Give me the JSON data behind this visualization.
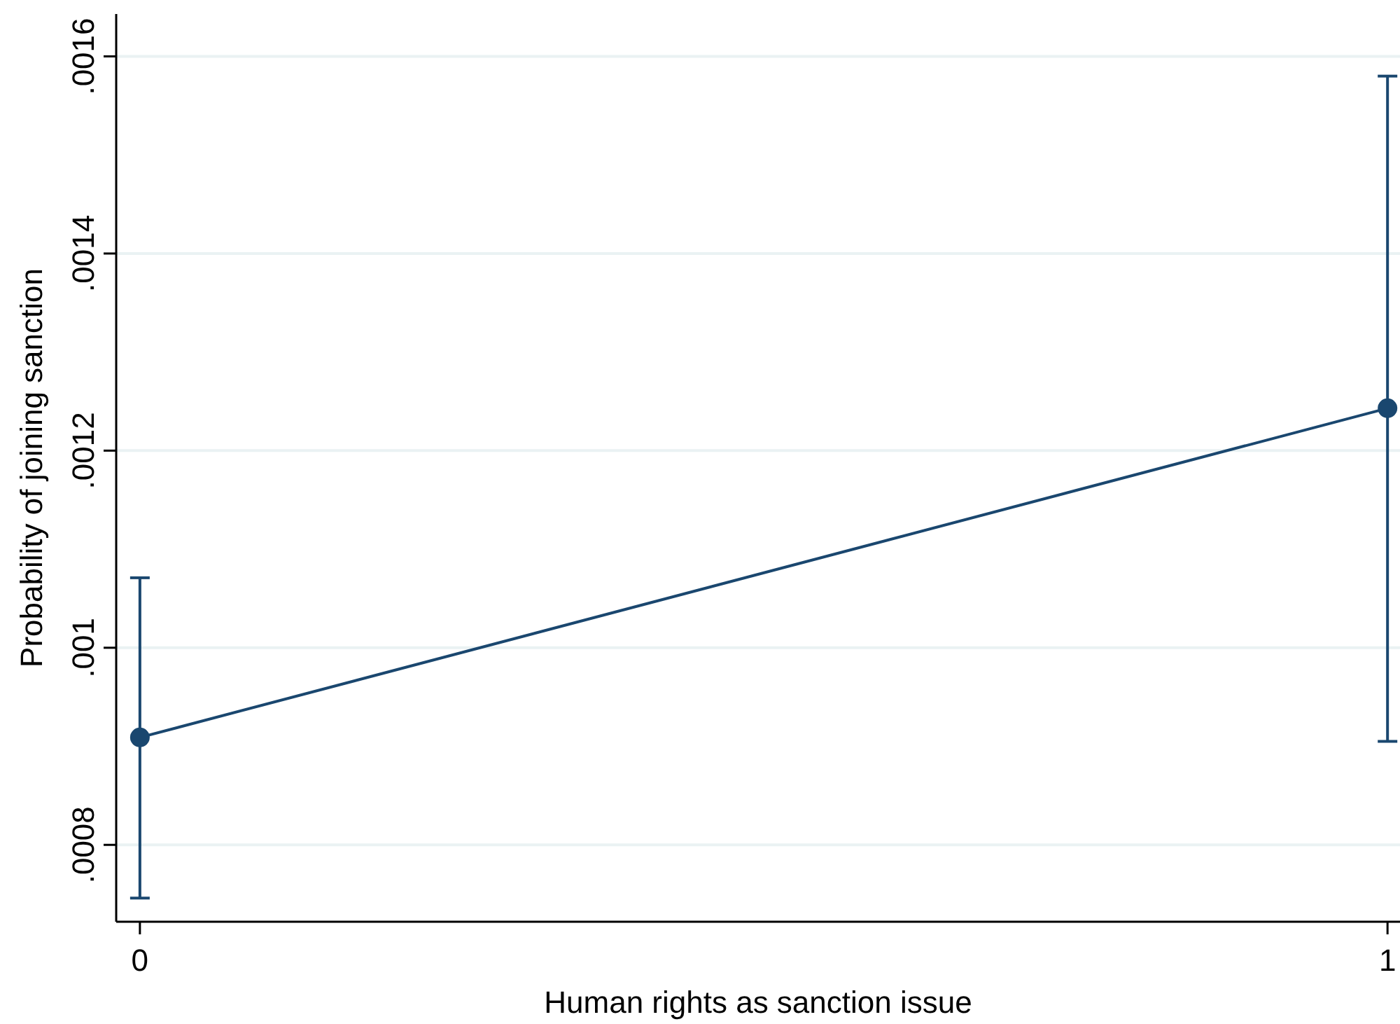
{
  "chart_data": {
    "type": "line",
    "xlabel": "Human rights as sanction issue",
    "ylabel": "Probability of joining sanction",
    "x": [
      0,
      1
    ],
    "series": [
      {
        "color": "#1a476f",
        "values": [
          0.000909,
          0.001243
        ],
        "errors": [
          [
            0.000746,
            0.001071
          ],
          [
            0.000905,
            0.00158
          ]
        ]
      }
    ],
    "xlim": [
      -0.019,
      1.01
    ],
    "xticks": [
      0,
      1
    ],
    "ylim": [
      0.000722,
      0.001643
    ],
    "yticks": [
      {
        "value": 0.0008,
        "label": ".0008"
      },
      {
        "value": 0.001,
        "label": ".001"
      },
      {
        "value": 0.0012,
        "label": ".0012"
      },
      {
        "value": 0.0014,
        "label": ".0014"
      },
      {
        "value": 0.0016,
        "label": ".0016"
      }
    ],
    "grid": "y",
    "marker": "circle",
    "line_style": "solid"
  }
}
